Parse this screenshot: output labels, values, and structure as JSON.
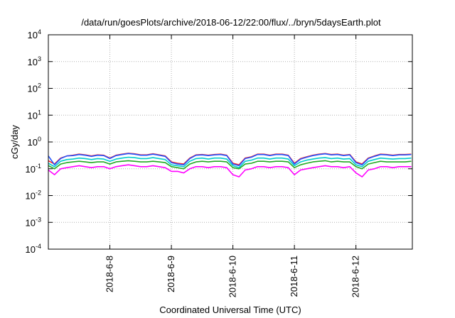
{
  "chart_data": {
    "type": "line",
    "title": "/data/run/goesPlots/archive/2018-06-12/22:00/flux/../bryn/5daysEarth.plot",
    "xlabel": "Coordinated Universal Time (UTC)",
    "ylabel": "cGy/day",
    "x_start": "2018-06-07 00:00",
    "x_end": "2018-06-12 22:00",
    "xlim_days": [
      0,
      5.917
    ],
    "yscale": "log",
    "ylim": [
      0.0001,
      10000
    ],
    "grid": true,
    "legend": "none",
    "y_ticks": [
      {
        "base": "10",
        "exp": "-4",
        "value": 0.0001
      },
      {
        "base": "10",
        "exp": "-3",
        "value": 0.001
      },
      {
        "base": "10",
        "exp": "-2",
        "value": 0.01
      },
      {
        "base": "10",
        "exp": "-1",
        "value": 0.1
      },
      {
        "base": "10",
        "exp": "0",
        "value": 1
      },
      {
        "base": "10",
        "exp": "1",
        "value": 10
      },
      {
        "base": "10",
        "exp": "2",
        "value": 100
      },
      {
        "base": "10",
        "exp": "3",
        "value": 1000
      },
      {
        "base": "10",
        "exp": "4",
        "value": 10000
      }
    ],
    "x_ticks": [
      {
        "label": "2018-6-8",
        "day": 1
      },
      {
        "label": "2018-6-9",
        "day": 2
      },
      {
        "label": "2018-6-10",
        "day": 3
      },
      {
        "label": "2018-6-11",
        "day": 4
      },
      {
        "label": "2018-6-12",
        "day": 5
      }
    ],
    "series": [
      {
        "color": "#ff00ff",
        "x": [
          0,
          0.1,
          0.2,
          0.3,
          0.4,
          0.5,
          0.6,
          0.7,
          0.8,
          0.9,
          1.0,
          1.1,
          1.2,
          1.3,
          1.4,
          1.5,
          1.6,
          1.7,
          1.8,
          1.9,
          2.0,
          2.1,
          2.2,
          2.3,
          2.4,
          2.5,
          2.6,
          2.7,
          2.8,
          2.9,
          3.0,
          3.1,
          3.2,
          3.3,
          3.4,
          3.5,
          3.6,
          3.7,
          3.8,
          3.9,
          4.0,
          4.1,
          4.2,
          4.3,
          4.4,
          4.5,
          4.6,
          4.7,
          4.8,
          4.9,
          5.0,
          5.1,
          5.2,
          5.3,
          5.4,
          5.5,
          5.6,
          5.7,
          5.8,
          5.9
        ],
        "values": [
          0.09,
          0.06,
          0.1,
          0.11,
          0.12,
          0.13,
          0.12,
          0.11,
          0.12,
          0.12,
          0.1,
          0.12,
          0.13,
          0.14,
          0.13,
          0.12,
          0.12,
          0.13,
          0.12,
          0.11,
          0.08,
          0.08,
          0.07,
          0.1,
          0.12,
          0.12,
          0.11,
          0.12,
          0.12,
          0.11,
          0.06,
          0.05,
          0.09,
          0.1,
          0.12,
          0.12,
          0.11,
          0.12,
          0.12,
          0.11,
          0.06,
          0.09,
          0.1,
          0.11,
          0.12,
          0.13,
          0.12,
          0.12,
          0.11,
          0.12,
          0.07,
          0.05,
          0.09,
          0.1,
          0.12,
          0.12,
          0.11,
          0.12,
          0.12,
          0.12
        ]
      },
      {
        "color": "#ff2222",
        "x": [
          0,
          0.1,
          0.2,
          0.3,
          0.4,
          0.5,
          0.6,
          0.7,
          0.8,
          0.9,
          1.0,
          1.1,
          1.2,
          1.3,
          1.4,
          1.5,
          1.6,
          1.7,
          1.8,
          1.9,
          2.0,
          2.1,
          2.2,
          2.3,
          2.4,
          2.5,
          2.6,
          2.7,
          2.8,
          2.9,
          3.0,
          3.1,
          3.2,
          3.3,
          3.4,
          3.5,
          3.6,
          3.7,
          3.8,
          3.9,
          4.0,
          4.1,
          4.2,
          4.3,
          4.4,
          4.5,
          4.6,
          4.7,
          4.8,
          4.9,
          5.0,
          5.1,
          5.2,
          5.3,
          5.4,
          5.5,
          5.6,
          5.7,
          5.8,
          5.9
        ],
        "values": [
          0.2,
          0.15,
          0.25,
          0.3,
          0.32,
          0.35,
          0.33,
          0.3,
          0.33,
          0.32,
          0.25,
          0.32,
          0.35,
          0.38,
          0.36,
          0.33,
          0.33,
          0.36,
          0.33,
          0.3,
          0.18,
          0.16,
          0.15,
          0.25,
          0.33,
          0.34,
          0.32,
          0.34,
          0.35,
          0.32,
          0.16,
          0.14,
          0.25,
          0.28,
          0.35,
          0.35,
          0.32,
          0.35,
          0.35,
          0.32,
          0.16,
          0.24,
          0.28,
          0.32,
          0.35,
          0.37,
          0.34,
          0.35,
          0.32,
          0.34,
          0.18,
          0.15,
          0.25,
          0.3,
          0.35,
          0.34,
          0.32,
          0.34,
          0.34,
          0.35
        ]
      },
      {
        "color": "#2255ff",
        "x": [
          0,
          0.1,
          0.2,
          0.3,
          0.4,
          0.5,
          0.6,
          0.7,
          0.8,
          0.9,
          1.0,
          1.1,
          1.2,
          1.3,
          1.4,
          1.5,
          1.6,
          1.7,
          1.8,
          1.9,
          2.0,
          2.1,
          2.2,
          2.3,
          2.4,
          2.5,
          2.6,
          2.7,
          2.8,
          2.9,
          3.0,
          3.1,
          3.2,
          3.3,
          3.4,
          3.5,
          3.6,
          3.7,
          3.8,
          3.9,
          4.0,
          4.1,
          4.2,
          4.3,
          4.4,
          4.5,
          4.6,
          4.7,
          4.8,
          4.9,
          5.0,
          5.1,
          5.2,
          5.3,
          5.4,
          5.5,
          5.6,
          5.7,
          5.8,
          5.9
        ],
        "values": [
          0.3,
          0.14,
          0.24,
          0.3,
          0.31,
          0.34,
          0.32,
          0.29,
          0.32,
          0.31,
          0.24,
          0.31,
          0.34,
          0.37,
          0.35,
          0.32,
          0.32,
          0.35,
          0.32,
          0.29,
          0.17,
          0.15,
          0.14,
          0.24,
          0.32,
          0.33,
          0.31,
          0.33,
          0.34,
          0.31,
          0.15,
          0.13,
          0.24,
          0.27,
          0.34,
          0.34,
          0.31,
          0.34,
          0.34,
          0.31,
          0.15,
          0.23,
          0.27,
          0.31,
          0.34,
          0.36,
          0.33,
          0.34,
          0.31,
          0.33,
          0.17,
          0.14,
          0.24,
          0.29,
          0.34,
          0.33,
          0.31,
          0.33,
          0.33,
          0.34
        ]
      },
      {
        "color": "#00cccc",
        "x": [
          0,
          0.1,
          0.2,
          0.3,
          0.4,
          0.5,
          0.6,
          0.7,
          0.8,
          0.9,
          1.0,
          1.1,
          1.2,
          1.3,
          1.4,
          1.5,
          1.6,
          1.7,
          1.8,
          1.9,
          2.0,
          2.1,
          2.2,
          2.3,
          2.4,
          2.5,
          2.6,
          2.7,
          2.8,
          2.9,
          3.0,
          3.1,
          3.2,
          3.3,
          3.4,
          3.5,
          3.6,
          3.7,
          3.8,
          3.9,
          4.0,
          4.1,
          4.2,
          4.3,
          4.4,
          4.5,
          4.6,
          4.7,
          4.8,
          4.9,
          5.0,
          5.1,
          5.2,
          5.3,
          5.4,
          5.5,
          5.6,
          5.7,
          5.8,
          5.9
        ],
        "values": [
          0.16,
          0.12,
          0.19,
          0.22,
          0.23,
          0.25,
          0.24,
          0.22,
          0.24,
          0.23,
          0.19,
          0.23,
          0.25,
          0.27,
          0.26,
          0.24,
          0.24,
          0.26,
          0.24,
          0.22,
          0.14,
          0.13,
          0.12,
          0.19,
          0.24,
          0.25,
          0.23,
          0.25,
          0.25,
          0.23,
          0.13,
          0.11,
          0.19,
          0.21,
          0.25,
          0.25,
          0.23,
          0.25,
          0.25,
          0.23,
          0.13,
          0.18,
          0.21,
          0.23,
          0.25,
          0.26,
          0.24,
          0.25,
          0.23,
          0.24,
          0.14,
          0.12,
          0.19,
          0.22,
          0.25,
          0.24,
          0.23,
          0.24,
          0.24,
          0.25
        ]
      },
      {
        "color": "#22aa22",
        "x": [
          0,
          0.1,
          0.2,
          0.3,
          0.4,
          0.5,
          0.6,
          0.7,
          0.8,
          0.9,
          1.0,
          1.1,
          1.2,
          1.3,
          1.4,
          1.5,
          1.6,
          1.7,
          1.8,
          1.9,
          2.0,
          2.1,
          2.2,
          2.3,
          2.4,
          2.5,
          2.6,
          2.7,
          2.8,
          2.9,
          3.0,
          3.1,
          3.2,
          3.3,
          3.4,
          3.5,
          3.6,
          3.7,
          3.8,
          3.9,
          4.0,
          4.1,
          4.2,
          4.3,
          4.4,
          4.5,
          4.6,
          4.7,
          4.8,
          4.9,
          5.0,
          5.1,
          5.2,
          5.3,
          5.4,
          5.5,
          5.6,
          5.7,
          5.8,
          5.9
        ],
        "values": [
          0.13,
          0.1,
          0.15,
          0.17,
          0.18,
          0.19,
          0.18,
          0.17,
          0.18,
          0.18,
          0.15,
          0.18,
          0.19,
          0.2,
          0.19,
          0.18,
          0.18,
          0.19,
          0.18,
          0.17,
          0.12,
          0.11,
          0.1,
          0.15,
          0.18,
          0.19,
          0.18,
          0.19,
          0.19,
          0.18,
          0.11,
          0.1,
          0.15,
          0.16,
          0.19,
          0.19,
          0.18,
          0.19,
          0.19,
          0.18,
          0.11,
          0.14,
          0.16,
          0.18,
          0.19,
          0.2,
          0.18,
          0.19,
          0.18,
          0.18,
          0.12,
          0.1,
          0.15,
          0.17,
          0.19,
          0.18,
          0.18,
          0.18,
          0.18,
          0.19
        ]
      }
    ]
  }
}
